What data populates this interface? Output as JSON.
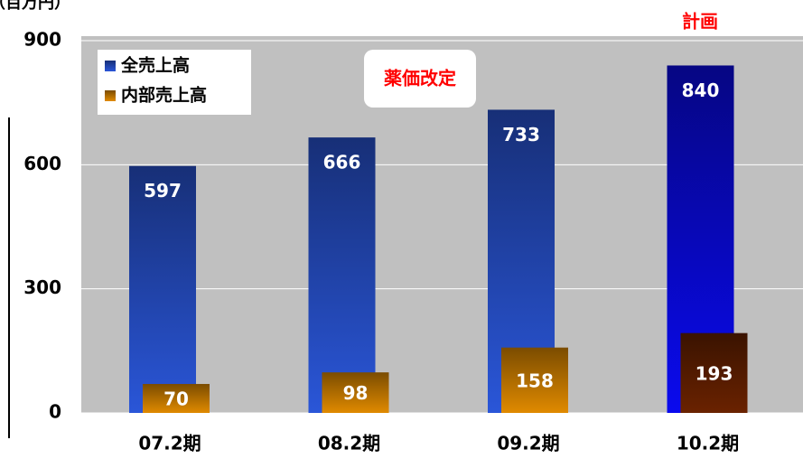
{
  "chart_data": {
    "type": "bar",
    "y_axis_label": "（百万円）",
    "annotations": [
      "計画",
      "薬価改定"
    ],
    "categories": [
      "07.2期",
      "08.2期",
      "09.2期",
      "10.2期"
    ],
    "series": [
      {
        "name": "全売上高",
        "color": "#2a56d8",
        "colors": [
          "#2a56d8",
          "#2a56d8",
          "#2a56d8",
          "#0a0aee"
        ],
        "values": [
          597,
          666,
          733,
          840
        ]
      },
      {
        "name": "内部売上高",
        "color": "#e08a00",
        "colors": [
          "#e08a00",
          "#e08a00",
          "#e08a00",
          "#6a2200"
        ],
        "values": [
          70,
          98,
          158,
          193
        ]
      }
    ],
    "ylim": [
      0,
      900
    ],
    "yticks": [
      0,
      300,
      600,
      900
    ],
    "grid": true
  }
}
